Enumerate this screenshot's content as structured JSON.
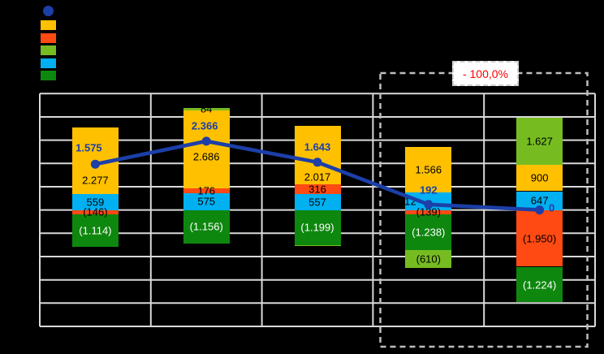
{
  "canvas": {
    "background": "#000000",
    "plot_background": "#000000",
    "gridline_color": "#d9d9d9"
  },
  "legend": {
    "position": "top-left",
    "items": [
      {
        "series": "line",
        "marker": "circle",
        "color": "#1c3fa8",
        "label": ""
      },
      {
        "series": "yellow",
        "marker": "square",
        "color": "#ffc000",
        "label": ""
      },
      {
        "series": "orange",
        "marker": "square",
        "color": "#ff4a14",
        "label": ""
      },
      {
        "series": "lightgreen",
        "marker": "square",
        "color": "#76bc21",
        "label": ""
      },
      {
        "series": "cyan",
        "marker": "square",
        "color": "#00b0f0",
        "label": ""
      },
      {
        "series": "darkgreen",
        "marker": "square",
        "color": "#0e870e",
        "label": ""
      }
    ]
  },
  "highlight": {
    "label": "- 100,0%",
    "label_color": "#ff0000",
    "box_color": "#bdbdbd",
    "covers_categories": [
      4,
      5
    ]
  },
  "chart_data": {
    "type": "bar",
    "subtype": "stacked-bar-with-net-line",
    "title": "",
    "categories": [
      "",
      "",
      "",
      "",
      ""
    ],
    "grid": true,
    "legend_position": "top-left",
    "y_axis": {
      "min": -4000,
      "max": 4000,
      "step": 800,
      "tick_labels_visible": false
    },
    "colors": {
      "yellow": "#ffc000",
      "orange": "#ff4a14",
      "lightgreen": "#76bc21",
      "cyan": "#00b0f0",
      "darkgreen": "#0e870e",
      "line": "#1c3fa8"
    },
    "bars": [
      {
        "stack_up": [
          {
            "series": "cyan",
            "value": 559,
            "label": "559"
          },
          {
            "series": "yellow",
            "value": 2277,
            "label": "2.277",
            "label_dy": 24
          }
        ],
        "stack_down": [
          {
            "series": "orange",
            "value": 146,
            "label": "(146)"
          },
          {
            "series": "darkgreen",
            "value": 1114,
            "label": "(1.114)"
          }
        ]
      },
      {
        "stack_up": [
          {
            "series": "cyan",
            "value": 575,
            "label": "575"
          },
          {
            "series": "orange",
            "value": 176,
            "label": "176"
          },
          {
            "series": "yellow",
            "value": 2686,
            "label": "2.686",
            "label_dy": 9
          },
          {
            "series": "lightgreen",
            "value": 84,
            "label": "84"
          }
        ],
        "stack_down": [
          {
            "series": "darkgreen",
            "value": 1156,
            "label": "(1.156)"
          }
        ]
      },
      {
        "stack_up": [
          {
            "series": "cyan",
            "value": 557,
            "label": "557"
          },
          {
            "series": "orange",
            "value": 316,
            "label": "316"
          },
          {
            "series": "yellow",
            "value": 2017,
            "label": "2.017",
            "label_dy": 27
          }
        ],
        "stack_down": [
          {
            "series": "darkgreen",
            "value": 1199,
            "label": "(1.199)"
          },
          {
            "series": "lightgreen",
            "value": 48,
            "label": ""
          }
        ]
      },
      {
        "stack_up": [
          {
            "series": "cyan",
            "value": 612,
            "label": "612",
            "label_dx": -26
          },
          {
            "series": "yellow",
            "value": 1566,
            "label": "1.566"
          }
        ],
        "stack_down": [
          {
            "series": "orange",
            "value": 139,
            "label": "(139)"
          },
          {
            "series": "darkgreen",
            "value": 1238,
            "label": "(1.238)"
          },
          {
            "series": "lightgreen",
            "value": 610,
            "label": "(610)"
          }
        ]
      },
      {
        "stack_up": [
          {
            "series": "cyan",
            "value": 647,
            "label": "647"
          },
          {
            "series": "yellow",
            "value": 900,
            "label": "900"
          },
          {
            "series": "lightgreen",
            "value": 1627,
            "label": "1.627"
          }
        ],
        "stack_down": [
          {
            "series": "orange",
            "value": 1950,
            "label": "(1.950)"
          },
          {
            "series": "darkgreen",
            "value": 1224,
            "label": "(1.224)"
          }
        ]
      }
    ],
    "line": {
      "name": "net-result",
      "values": [
        1575,
        2366,
        1643,
        192,
        0
      ],
      "labels": [
        "1.575",
        "2.366",
        "1.643",
        "192",
        "0"
      ]
    }
  }
}
